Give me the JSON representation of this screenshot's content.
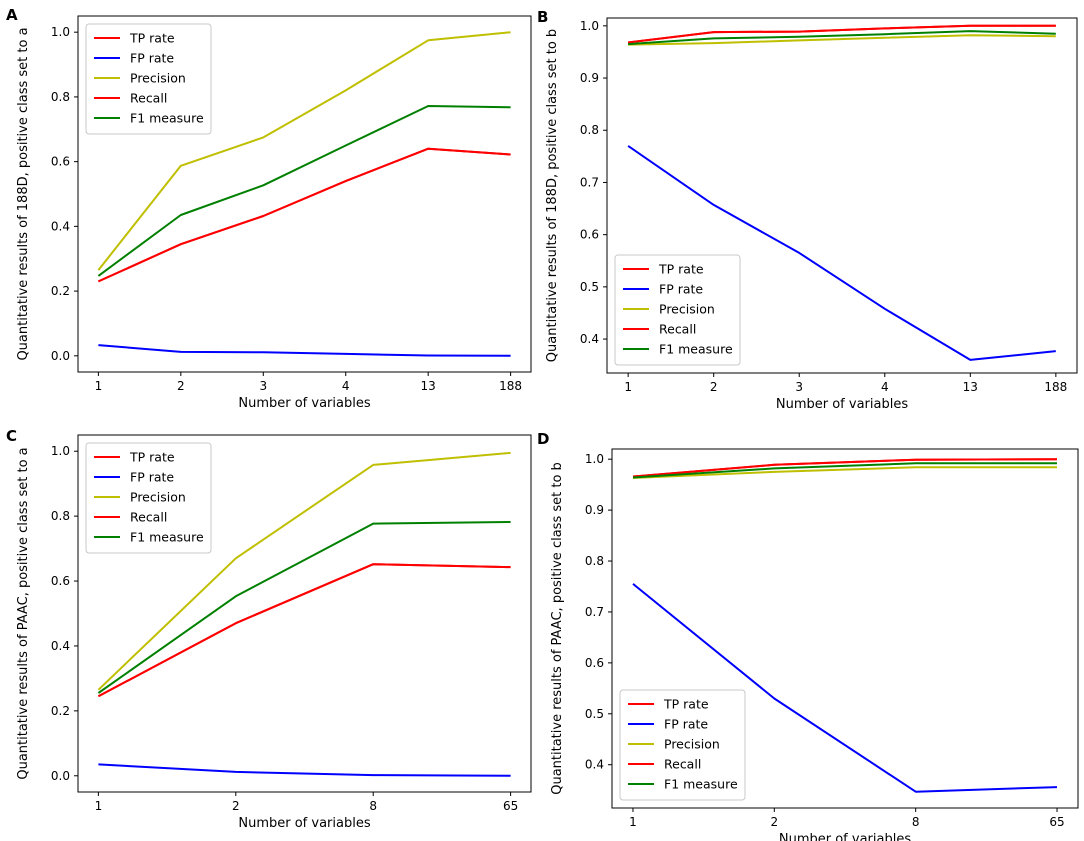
{
  "chart_data": [
    {
      "panel": "A",
      "type": "line",
      "categories": [
        "1",
        "2",
        "3",
        "4",
        "13",
        "188"
      ],
      "xlabel": "Number of variables",
      "ylabel": "Quantitative results of 188D, positive class set to a",
      "ylim": [
        -0.05,
        1.05
      ],
      "yticks": [
        0.0,
        0.2,
        0.4,
        0.6,
        0.8,
        1.0
      ],
      "yticklabels": [
        "0.0",
        "0.2",
        "0.4",
        "0.6",
        "0.8",
        "1.0"
      ],
      "legend_position": "upper-left",
      "series": [
        {
          "name": "TP rate",
          "color": "#ff0000",
          "values": [
            0.23,
            0.345,
            0.432,
            0.54,
            0.64,
            0.622
          ]
        },
        {
          "name": "FP rate",
          "color": "#0000ff",
          "values": [
            0.033,
            0.012,
            0.011,
            0.006,
            0.001,
            0.0
          ]
        },
        {
          "name": "Precision",
          "color": "#bfbf00",
          "values": [
            0.265,
            0.587,
            0.675,
            0.82,
            0.975,
            1.0
          ]
        },
        {
          "name": "Recall",
          "color": "#ff0000",
          "values": [
            0.23,
            0.345,
            0.432,
            0.54,
            0.64,
            0.622
          ]
        },
        {
          "name": "F1 measure",
          "color": "#008000",
          "values": [
            0.247,
            0.435,
            0.527,
            0.65,
            0.772,
            0.768
          ]
        }
      ]
    },
    {
      "panel": "B",
      "type": "line",
      "categories": [
        "1",
        "2",
        "3",
        "4",
        "13",
        "188"
      ],
      "xlabel": "Number of variables",
      "ylabel": "Quantitative results of 188D, positive class set to b",
      "ylim": [
        0.335,
        1.015
      ],
      "yticks": [
        0.4,
        0.5,
        0.6,
        0.7,
        0.8,
        0.9,
        1.0
      ],
      "yticklabels": [
        "0.4",
        "0.5",
        "0.6",
        "0.7",
        "0.8",
        "0.9",
        "1.0"
      ],
      "legend_position": "lower-left",
      "series": [
        {
          "name": "TP rate",
          "color": "#ff0000",
          "values": [
            0.968,
            0.988,
            0.989,
            0.995,
            1.0,
            1.0
          ]
        },
        {
          "name": "FP rate",
          "color": "#0000ff",
          "values": [
            0.77,
            0.657,
            0.565,
            0.458,
            0.36,
            0.377
          ]
        },
        {
          "name": "Precision",
          "color": "#bfbf00",
          "values": [
            0.964,
            0.967,
            0.972,
            0.977,
            0.982,
            0.98
          ]
        },
        {
          "name": "Recall",
          "color": "#ff0000",
          "values": [
            0.968,
            0.988,
            0.989,
            0.995,
            1.0,
            1.0
          ]
        },
        {
          "name": "F1 measure",
          "color": "#008000",
          "values": [
            0.965,
            0.976,
            0.979,
            0.984,
            0.99,
            0.985
          ]
        }
      ]
    },
    {
      "panel": "C",
      "type": "line",
      "categories": [
        "1",
        "2",
        "8",
        "65"
      ],
      "xlabel": "Number of variables",
      "ylabel": "Quantitative results of PAAC, positive class set to a",
      "ylim": [
        -0.05,
        1.05
      ],
      "yticks": [
        0.0,
        0.2,
        0.4,
        0.6,
        0.8,
        1.0
      ],
      "yticklabels": [
        "0.0",
        "0.2",
        "0.4",
        "0.6",
        "0.8",
        "1.0"
      ],
      "legend_position": "upper-left",
      "series": [
        {
          "name": "TP rate",
          "color": "#ff0000",
          "values": [
            0.245,
            0.47,
            0.652,
            0.643
          ]
        },
        {
          "name": "FP rate",
          "color": "#0000ff",
          "values": [
            0.035,
            0.012,
            0.002,
            0.0
          ]
        },
        {
          "name": "Precision",
          "color": "#bfbf00",
          "values": [
            0.265,
            0.67,
            0.958,
            0.995
          ]
        },
        {
          "name": "Recall",
          "color": "#ff0000",
          "values": [
            0.245,
            0.47,
            0.652,
            0.643
          ]
        },
        {
          "name": "F1 measure",
          "color": "#008000",
          "values": [
            0.255,
            0.553,
            0.777,
            0.782
          ]
        }
      ]
    },
    {
      "panel": "D",
      "type": "line",
      "categories": [
        "1",
        "2",
        "8",
        "65"
      ],
      "xlabel": "Number of variables",
      "ylabel": "Quantitative results of PAAC, positive class set to b",
      "ylim": [
        0.315,
        1.02
      ],
      "yticks": [
        0.4,
        0.5,
        0.6,
        0.7,
        0.8,
        0.9,
        1.0
      ],
      "yticklabels": [
        "0.4",
        "0.5",
        "0.6",
        "0.7",
        "0.8",
        "0.9",
        "1.0"
      ],
      "legend_position": "lower-left",
      "series": [
        {
          "name": "TP rate",
          "color": "#ff0000",
          "values": [
            0.966,
            0.989,
            0.999,
            1.0
          ]
        },
        {
          "name": "FP rate",
          "color": "#0000ff",
          "values": [
            0.755,
            0.53,
            0.347,
            0.356
          ]
        },
        {
          "name": "Precision",
          "color": "#bfbf00",
          "values": [
            0.963,
            0.975,
            0.984,
            0.984
          ]
        },
        {
          "name": "Recall",
          "color": "#ff0000",
          "values": [
            0.966,
            0.989,
            0.999,
            1.0
          ]
        },
        {
          "name": "F1 measure",
          "color": "#008000",
          "values": [
            0.964,
            0.982,
            0.992,
            0.992
          ]
        }
      ]
    }
  ]
}
